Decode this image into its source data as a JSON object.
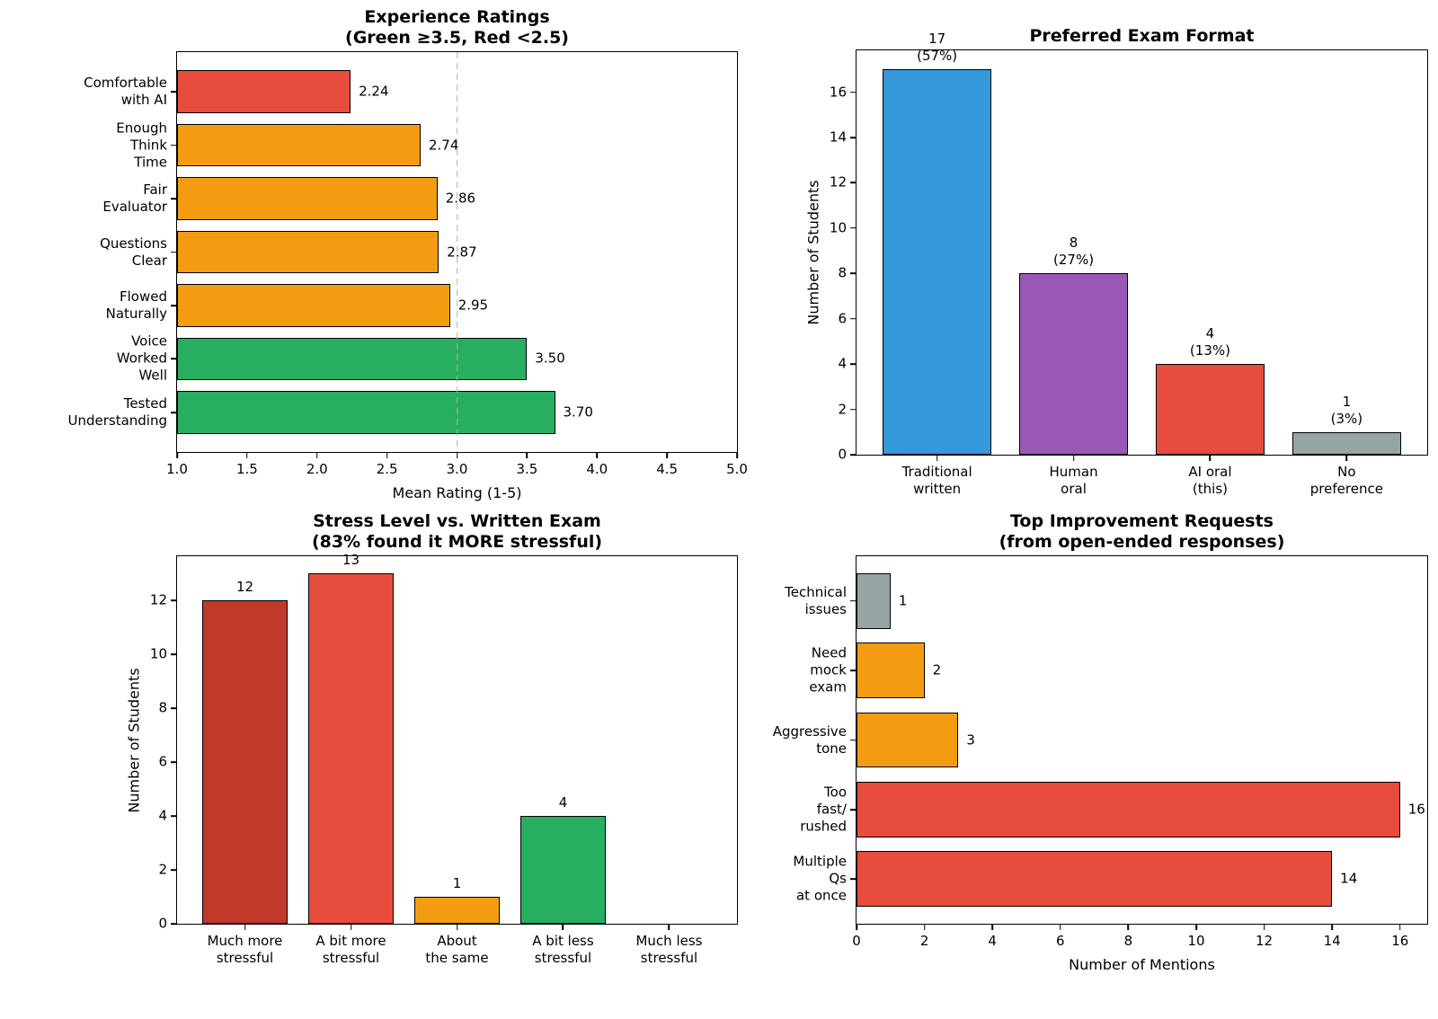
{
  "figure": {
    "background": "#ffffff",
    "spine_color": "#000000",
    "bar_edge_color": "#000000",
    "text_color": "#000000"
  },
  "chart_data": [
    {
      "id": "experience-ratings",
      "type": "barh",
      "title": [
        "Experience Ratings",
        "(Green ≥3.5, Red <2.5)"
      ],
      "categories": [
        [
          "Comfortable with AI"
        ],
        [
          "Enough Think Time"
        ],
        [
          "Fair Evaluator"
        ],
        [
          "Questions Clear"
        ],
        [
          "Flowed Naturally"
        ],
        [
          "Voice Worked Well"
        ],
        [
          "Tested Understanding"
        ]
      ],
      "values": [
        2.24,
        2.74,
        2.86,
        2.87,
        2.95,
        3.5,
        3.7
      ],
      "value_labels": [
        "2.24",
        "2.74",
        "2.86",
        "2.87",
        "2.95",
        "3.50",
        "3.70"
      ],
      "colors": [
        "#e74c3c",
        "#f39c12",
        "#f39c12",
        "#f39c12",
        "#f39c12",
        "#27ae60",
        "#27ae60"
      ],
      "xlabel": "Mean Rating (1-5)",
      "xlim": [
        1.0,
        5.0
      ],
      "xtick_values": [
        1.0,
        1.5,
        2.0,
        2.5,
        3.0,
        3.5,
        4.0,
        4.5,
        5.0
      ],
      "xtick_labels": [
        "1.0",
        "1.5",
        "2.0",
        "2.5",
        "3.0",
        "3.5",
        "4.0",
        "4.5",
        "5.0"
      ],
      "refline": {
        "value": 3.0,
        "color": "#b0b0b0"
      },
      "legend_position": "none",
      "grid": false
    },
    {
      "id": "preferred-exam-format",
      "type": "bar",
      "title": [
        "Preferred Exam Format"
      ],
      "categories": [
        [
          "Traditional",
          "written"
        ],
        [
          "Human",
          "oral"
        ],
        [
          "AI oral",
          "(this)"
        ],
        [
          "No",
          "preference"
        ]
      ],
      "values": [
        17,
        8,
        4,
        1
      ],
      "value_labels": [
        [
          "17",
          "(57%)"
        ],
        [
          "8",
          "(27%)"
        ],
        [
          "4",
          "(13%)"
        ],
        [
          "1",
          "(3%)"
        ]
      ],
      "colors": [
        "#3498db",
        "#9b59b6",
        "#e74c3c",
        "#95a5a6"
      ],
      "ylabel": "Number of Students",
      "ylim": [
        0,
        17.85
      ],
      "ytick_values": [
        0,
        2,
        4,
        6,
        8,
        10,
        12,
        14,
        16
      ],
      "ytick_labels": [
        "0",
        "2",
        "4",
        "6",
        "8",
        "10",
        "12",
        "14",
        "16"
      ],
      "legend_position": "none",
      "grid": false
    },
    {
      "id": "stress-level",
      "type": "bar",
      "title": [
        "Stress Level vs. Written Exam",
        "(83% found it MORE stressful)"
      ],
      "categories": [
        [
          "Much more",
          "stressful"
        ],
        [
          "A bit more",
          "stressful"
        ],
        [
          "About",
          "the same"
        ],
        [
          "A bit less",
          "stressful"
        ],
        [
          "Much less",
          "stressful"
        ]
      ],
      "values": [
        12,
        13,
        1,
        4,
        0
      ],
      "value_labels": [
        [
          "12"
        ],
        [
          "13"
        ],
        [
          "1"
        ],
        [
          "4"
        ],
        []
      ],
      "colors": [
        "#c0392b",
        "#e74c3c",
        "#f39c12",
        "#27ae60",
        "#27ae60"
      ],
      "ylabel": "Number of Students",
      "ylim": [
        0,
        13.65
      ],
      "ytick_values": [
        0,
        2,
        4,
        6,
        8,
        10,
        12
      ],
      "ytick_labels": [
        "0",
        "2",
        "4",
        "6",
        "8",
        "10",
        "12"
      ],
      "legend_position": "none",
      "grid": false
    },
    {
      "id": "improvement-requests",
      "type": "barh",
      "title": [
        "Top Improvement Requests",
        "(from open-ended responses)"
      ],
      "categories": [
        [
          "Technical",
          "issues"
        ],
        [
          "Need mock",
          "exam"
        ],
        [
          "Aggressive",
          "tone"
        ],
        [
          "Too fast/",
          "rushed"
        ],
        [
          "Multiple Qs",
          "at once"
        ]
      ],
      "values": [
        1,
        2,
        3,
        16,
        14
      ],
      "value_labels": [
        "1",
        "2",
        "3",
        "16",
        "14"
      ],
      "colors": [
        "#95a5a6",
        "#f39c12",
        "#f39c12",
        "#e74c3c",
        "#e74c3c"
      ],
      "xlabel": "Number of Mentions",
      "xlim": [
        0,
        16.8
      ],
      "xtick_values": [
        0,
        2,
        4,
        6,
        8,
        10,
        12,
        14,
        16
      ],
      "xtick_labels": [
        "0",
        "2",
        "4",
        "6",
        "8",
        "10",
        "12",
        "14",
        "16"
      ],
      "legend_position": "none",
      "grid": false
    }
  ]
}
